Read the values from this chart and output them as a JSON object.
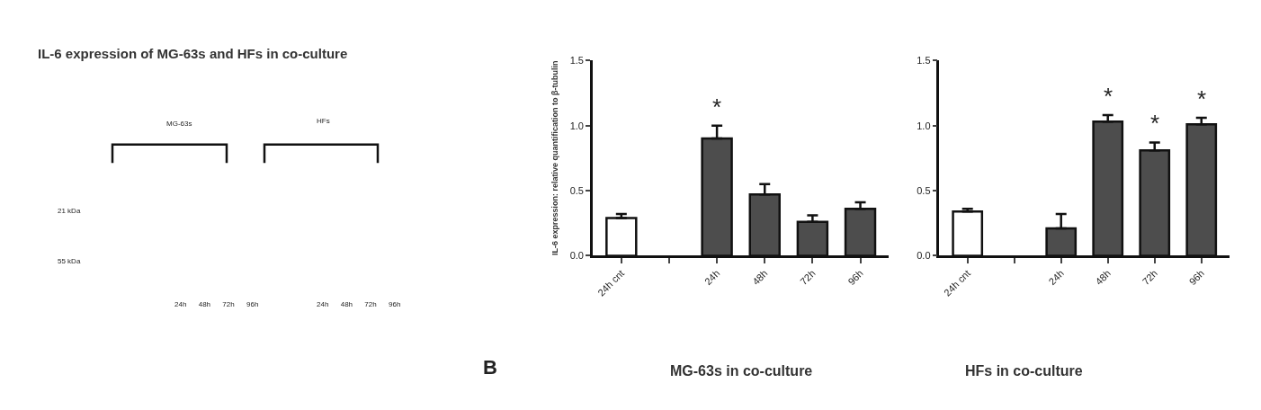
{
  "chart_data": [
    {
      "type": "other",
      "title": "IL-6 expression of MG-63s and HFs in co-culture",
      "annotations": [
        "MG-63s",
        "HFs",
        "21 kDa",
        "55 kDa",
        "24h 48h 72h 96h",
        "24h 48h 72h 96h"
      ]
    },
    {
      "type": "bar",
      "title": "MG-63s in co-culture",
      "ylabel": "IL-6 expression: relative quantification to β-tubulin",
      "categories": [
        "24h cnt",
        null,
        "24h",
        "48h",
        "72h",
        "96h"
      ],
      "values": [
        0.29,
        null,
        0.9,
        0.47,
        0.26,
        0.36
      ],
      "errors": [
        [
          0.29,
          0.32
        ],
        null,
        [
          0.9,
          1.0
        ],
        [
          0.47,
          0.55
        ],
        [
          0.26,
          0.31
        ],
        [
          0.36,
          0.41
        ]
      ],
      "colors": [
        "#ffffff",
        null,
        "#4d4d4d",
        "#4d4d4d",
        "#4d4d4d",
        "#4d4d4d"
      ],
      "ylim": [
        0,
        1.5
      ],
      "yticks": [
        {
          "value": 0,
          "label": "0.0"
        },
        {
          "value": 0.5,
          "label": "0.5"
        },
        {
          "value": 1,
          "label": "1.0"
        },
        {
          "value": 1.5,
          "label": "1.5"
        }
      ],
      "value_labels": [
        null,
        null,
        "*",
        null,
        null,
        null
      ],
      "annotations": [
        "B"
      ]
    },
    {
      "type": "bar",
      "title": "HFs in co-culture",
      "categories": [
        "24h cnt",
        null,
        "24h",
        "48h",
        "72h",
        "96h"
      ],
      "values": [
        0.34,
        null,
        0.21,
        1.03,
        0.81,
        1.01
      ],
      "errors": [
        [
          0.34,
          0.36
        ],
        null,
        [
          0.21,
          0.32
        ],
        [
          1.03,
          1.08
        ],
        [
          0.81,
          0.87
        ],
        [
          1.01,
          1.06
        ]
      ],
      "colors": [
        "#ffffff",
        null,
        "#4d4d4d",
        "#4d4d4d",
        "#4d4d4d",
        "#4d4d4d"
      ],
      "ylim": [
        0,
        1.5
      ],
      "yticks": [
        {
          "value": 0,
          "label": "0.0"
        },
        {
          "value": 0.5,
          "label": "0.5"
        },
        {
          "value": 1,
          "label": "1.0"
        },
        {
          "value": 1.5,
          "label": "1.5"
        }
      ],
      "value_labels": [
        null,
        null,
        null,
        "*",
        "*",
        "*"
      ]
    }
  ]
}
